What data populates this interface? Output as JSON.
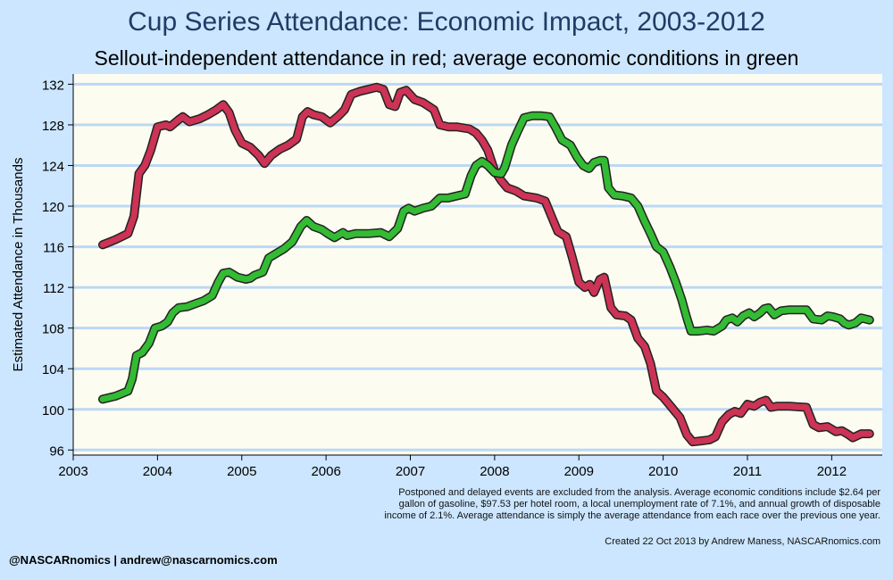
{
  "title": "Cup Series Attendance: Economic Impact, 2003-2012",
  "subtitle": "Sellout-independent attendance in red; average economic conditions in green",
  "footnote": "Postponed and delayed events are excluded from the analysis. Average economic conditions include $2.64 per gallon of gasoline, $97.53 per hotel room, a local unemployment rate of 7.1%, and annual growth of disposable income of 2.1%. Average attendance is simply the average attendance from each race over the previous one year.",
  "credit": "Created 22 Oct 2013 by Andrew Maness, NASCARnomics.com",
  "handle": "@NASCARnomics | andrew@nascarnomics.com",
  "colors": {
    "red": "#cc3355",
    "green": "#33bb33",
    "plot_bg": "#fdfcf0",
    "grid": "#bcd8f5",
    "page_bg": "#cce6ff"
  },
  "chart_data": {
    "type": "line",
    "ylabel": "Estimated Attendance in Thousands",
    "xlabel": "",
    "xlim": [
      2003,
      2012.6
    ],
    "ylim": [
      95.5,
      133
    ],
    "x_ticks": [
      2003,
      2004,
      2005,
      2006,
      2007,
      2008,
      2009,
      2010,
      2011,
      2012
    ],
    "y_ticks": [
      96,
      100,
      104,
      108,
      112,
      116,
      120,
      124,
      128,
      132
    ],
    "grid": "horizontal",
    "series": [
      {
        "color": "#cc3355",
        "points": [
          [
            2003.35,
            116.2
          ],
          [
            2003.5,
            116.7
          ],
          [
            2003.65,
            117.3
          ],
          [
            2003.72,
            119.0
          ],
          [
            2003.78,
            123.2
          ],
          [
            2003.85,
            124.0
          ],
          [
            2003.92,
            125.5
          ],
          [
            2004.0,
            127.8
          ],
          [
            2004.1,
            128.0
          ],
          [
            2004.15,
            127.8
          ],
          [
            2004.25,
            128.5
          ],
          [
            2004.3,
            128.8
          ],
          [
            2004.38,
            128.3
          ],
          [
            2004.5,
            128.6
          ],
          [
            2004.6,
            129.0
          ],
          [
            2004.7,
            129.5
          ],
          [
            2004.78,
            130.0
          ],
          [
            2004.85,
            129.2
          ],
          [
            2004.92,
            127.5
          ],
          [
            2005.0,
            126.2
          ],
          [
            2005.1,
            125.8
          ],
          [
            2005.2,
            125.0
          ],
          [
            2005.27,
            124.2
          ],
          [
            2005.35,
            125.0
          ],
          [
            2005.45,
            125.6
          ],
          [
            2005.55,
            126.0
          ],
          [
            2005.65,
            126.6
          ],
          [
            2005.72,
            128.8
          ],
          [
            2005.78,
            129.3
          ],
          [
            2005.85,
            129.0
          ],
          [
            2005.95,
            128.8
          ],
          [
            2006.05,
            128.2
          ],
          [
            2006.15,
            128.9
          ],
          [
            2006.22,
            129.5
          ],
          [
            2006.3,
            131.0
          ],
          [
            2006.4,
            131.3
          ],
          [
            2006.5,
            131.5
          ],
          [
            2006.6,
            131.7
          ],
          [
            2006.68,
            131.5
          ],
          [
            2006.75,
            130.0
          ],
          [
            2006.82,
            129.8
          ],
          [
            2006.88,
            131.2
          ],
          [
            2006.95,
            131.4
          ],
          [
            2007.05,
            130.5
          ],
          [
            2007.15,
            130.2
          ],
          [
            2007.28,
            129.5
          ],
          [
            2007.35,
            128.0
          ],
          [
            2007.45,
            127.8
          ],
          [
            2007.55,
            127.8
          ],
          [
            2007.7,
            127.6
          ],
          [
            2007.78,
            127.2
          ],
          [
            2007.85,
            126.5
          ],
          [
            2007.92,
            125.5
          ],
          [
            2008.0,
            123.5
          ],
          [
            2008.08,
            122.5
          ],
          [
            2008.15,
            121.8
          ],
          [
            2008.25,
            121.5
          ],
          [
            2008.35,
            121.0
          ],
          [
            2008.5,
            120.8
          ],
          [
            2008.6,
            120.5
          ],
          [
            2008.7,
            118.5
          ],
          [
            2008.75,
            117.5
          ],
          [
            2008.85,
            117.0
          ],
          [
            2008.92,
            115.0
          ],
          [
            2009.0,
            112.5
          ],
          [
            2009.07,
            112.0
          ],
          [
            2009.13,
            112.3
          ],
          [
            2009.18,
            111.5
          ],
          [
            2009.25,
            112.8
          ],
          [
            2009.3,
            113.0
          ],
          [
            2009.38,
            110.0
          ],
          [
            2009.45,
            109.3
          ],
          [
            2009.55,
            109.2
          ],
          [
            2009.62,
            108.8
          ],
          [
            2009.7,
            107.0
          ],
          [
            2009.78,
            106.2
          ],
          [
            2009.85,
            104.5
          ],
          [
            2009.92,
            101.8
          ],
          [
            2010.0,
            101.2
          ],
          [
            2010.1,
            100.2
          ],
          [
            2010.2,
            99.2
          ],
          [
            2010.28,
            97.5
          ],
          [
            2010.35,
            96.8
          ],
          [
            2010.45,
            96.9
          ],
          [
            2010.55,
            97.0
          ],
          [
            2010.62,
            97.3
          ],
          [
            2010.7,
            98.8
          ],
          [
            2010.78,
            99.5
          ],
          [
            2010.85,
            99.8
          ],
          [
            2010.92,
            99.6
          ],
          [
            2011.0,
            100.5
          ],
          [
            2011.08,
            100.3
          ],
          [
            2011.15,
            100.7
          ],
          [
            2011.22,
            100.9
          ],
          [
            2011.28,
            100.2
          ],
          [
            2011.35,
            100.3
          ],
          [
            2011.5,
            100.3
          ],
          [
            2011.7,
            100.2
          ],
          [
            2011.78,
            98.5
          ],
          [
            2011.85,
            98.2
          ],
          [
            2011.95,
            98.3
          ],
          [
            2012.05,
            97.8
          ],
          [
            2012.12,
            97.9
          ],
          [
            2012.2,
            97.5
          ],
          [
            2012.25,
            97.2
          ],
          [
            2012.35,
            97.6
          ],
          [
            2012.45,
            97.6
          ]
        ]
      },
      {
        "color": "#33bb33",
        "points": [
          [
            2003.35,
            101.0
          ],
          [
            2003.5,
            101.3
          ],
          [
            2003.65,
            101.8
          ],
          [
            2003.7,
            103.0
          ],
          [
            2003.75,
            105.3
          ],
          [
            2003.82,
            105.6
          ],
          [
            2003.9,
            106.5
          ],
          [
            2003.97,
            108.0
          ],
          [
            2004.05,
            108.2
          ],
          [
            2004.12,
            108.6
          ],
          [
            2004.18,
            109.5
          ],
          [
            2004.25,
            110.0
          ],
          [
            2004.35,
            110.1
          ],
          [
            2004.45,
            110.4
          ],
          [
            2004.55,
            110.7
          ],
          [
            2004.65,
            111.2
          ],
          [
            2004.72,
            112.5
          ],
          [
            2004.78,
            113.4
          ],
          [
            2004.85,
            113.5
          ],
          [
            2004.95,
            113.0
          ],
          [
            2005.05,
            112.8
          ],
          [
            2005.1,
            112.9
          ],
          [
            2005.15,
            113.2
          ],
          [
            2005.25,
            113.5
          ],
          [
            2005.32,
            114.9
          ],
          [
            2005.4,
            115.3
          ],
          [
            2005.5,
            115.8
          ],
          [
            2005.6,
            116.5
          ],
          [
            2005.7,
            118.0
          ],
          [
            2005.77,
            118.6
          ],
          [
            2005.85,
            118.0
          ],
          [
            2005.95,
            117.7
          ],
          [
            2006.02,
            117.3
          ],
          [
            2006.1,
            116.9
          ],
          [
            2006.2,
            117.4
          ],
          [
            2006.25,
            117.1
          ],
          [
            2006.35,
            117.3
          ],
          [
            2006.5,
            117.3
          ],
          [
            2006.65,
            117.4
          ],
          [
            2006.75,
            117.0
          ],
          [
            2006.85,
            117.8
          ],
          [
            2006.92,
            119.5
          ],
          [
            2006.98,
            119.8
          ],
          [
            2007.05,
            119.5
          ],
          [
            2007.15,
            119.8
          ],
          [
            2007.25,
            120.0
          ],
          [
            2007.35,
            120.8
          ],
          [
            2007.45,
            120.8
          ],
          [
            2007.55,
            121.0
          ],
          [
            2007.65,
            121.2
          ],
          [
            2007.72,
            123.0
          ],
          [
            2007.78,
            124.0
          ],
          [
            2007.85,
            124.4
          ],
          [
            2007.92,
            124.0
          ],
          [
            2008.0,
            123.3
          ],
          [
            2008.08,
            123.2
          ],
          [
            2008.12,
            123.8
          ],
          [
            2008.2,
            126.0
          ],
          [
            2008.27,
            127.3
          ],
          [
            2008.35,
            128.7
          ],
          [
            2008.45,
            128.9
          ],
          [
            2008.55,
            128.9
          ],
          [
            2008.65,
            128.8
          ],
          [
            2008.72,
            127.8
          ],
          [
            2008.8,
            126.5
          ],
          [
            2008.9,
            126.0
          ],
          [
            2008.98,
            124.8
          ],
          [
            2009.05,
            124.0
          ],
          [
            2009.12,
            123.7
          ],
          [
            2009.18,
            124.3
          ],
          [
            2009.25,
            124.5
          ],
          [
            2009.3,
            124.5
          ],
          [
            2009.35,
            121.8
          ],
          [
            2009.42,
            121.1
          ],
          [
            2009.52,
            121.0
          ],
          [
            2009.62,
            120.8
          ],
          [
            2009.7,
            120.0
          ],
          [
            2009.78,
            118.5
          ],
          [
            2009.85,
            117.3
          ],
          [
            2009.92,
            116.0
          ],
          [
            2010.0,
            115.5
          ],
          [
            2010.08,
            114.0
          ],
          [
            2010.15,
            112.5
          ],
          [
            2010.22,
            110.8
          ],
          [
            2010.28,
            109.0
          ],
          [
            2010.33,
            107.7
          ],
          [
            2010.42,
            107.7
          ],
          [
            2010.52,
            107.8
          ],
          [
            2010.6,
            107.7
          ],
          [
            2010.7,
            108.2
          ],
          [
            2010.75,
            108.8
          ],
          [
            2010.82,
            109.0
          ],
          [
            2010.88,
            108.6
          ],
          [
            2010.95,
            109.2
          ],
          [
            2011.02,
            109.5
          ],
          [
            2011.08,
            109.1
          ],
          [
            2011.15,
            109.5
          ],
          [
            2011.2,
            109.9
          ],
          [
            2011.25,
            110.0
          ],
          [
            2011.32,
            109.3
          ],
          [
            2011.4,
            109.7
          ],
          [
            2011.5,
            109.8
          ],
          [
            2011.6,
            109.8
          ],
          [
            2011.7,
            109.8
          ],
          [
            2011.78,
            108.9
          ],
          [
            2011.88,
            108.8
          ],
          [
            2011.95,
            109.2
          ],
          [
            2012.02,
            109.1
          ],
          [
            2012.1,
            108.9
          ],
          [
            2012.15,
            108.5
          ],
          [
            2012.2,
            108.3
          ],
          [
            2012.28,
            108.5
          ],
          [
            2012.35,
            109.0
          ],
          [
            2012.45,
            108.8
          ]
        ]
      }
    ]
  }
}
